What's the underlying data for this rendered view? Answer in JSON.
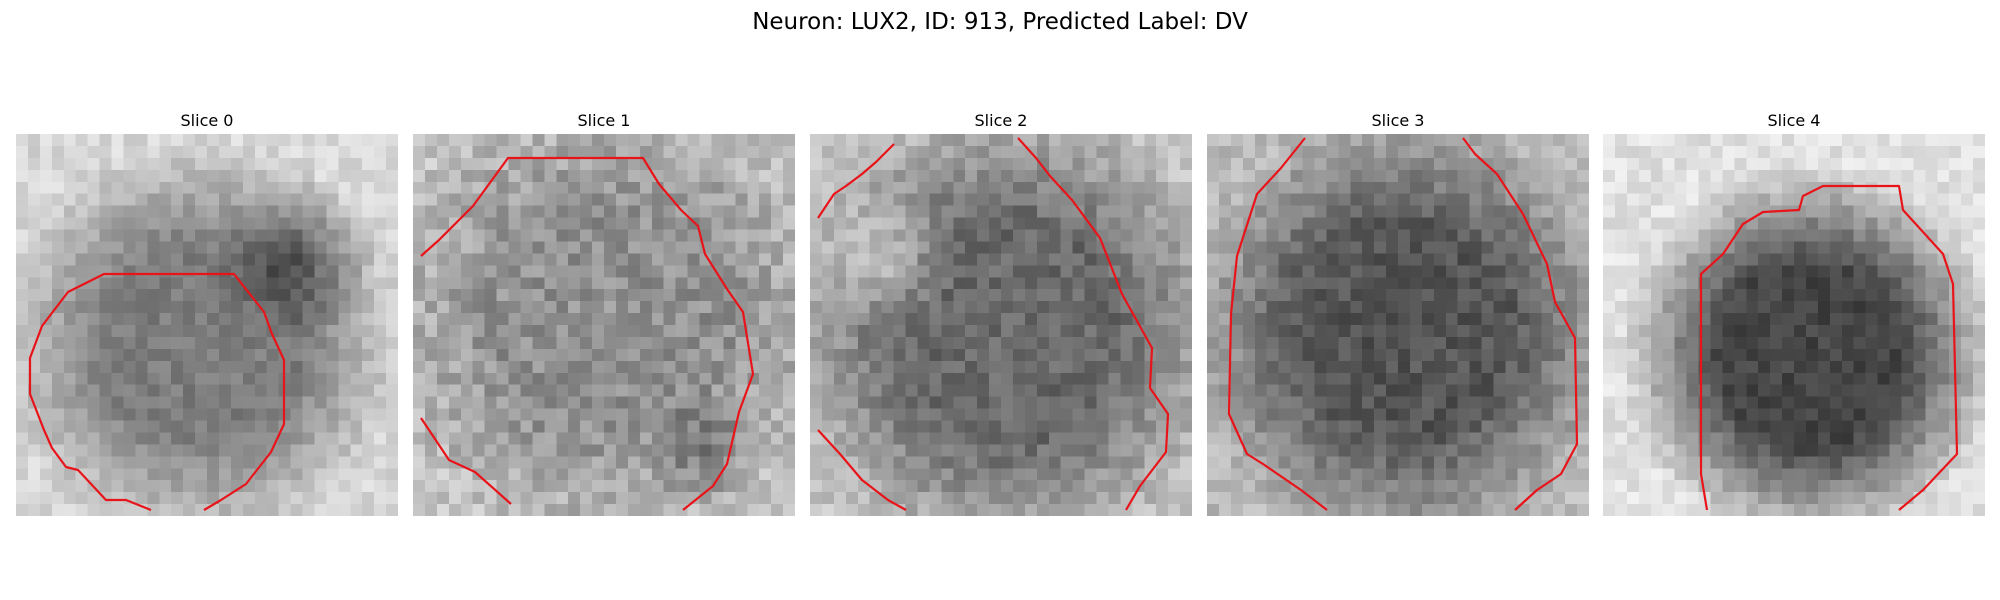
{
  "figure": {
    "title": "Neuron: LUX2, ID: 913, Predicted Label: DV",
    "contour_color": "#e8141a",
    "panels": [
      {
        "title": "Slice 0"
      },
      {
        "title": "Slice 1"
      },
      {
        "title": "Slice 2"
      },
      {
        "title": "Slice 3"
      },
      {
        "title": "Slice 4"
      }
    ]
  }
}
